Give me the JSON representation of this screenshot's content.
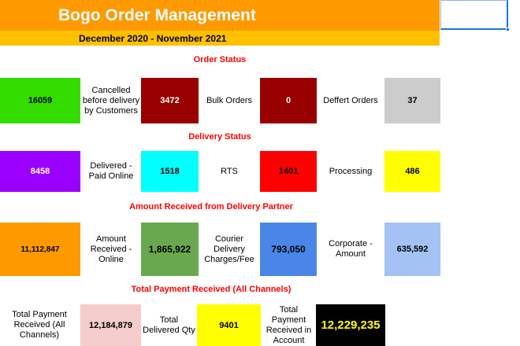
{
  "header": {
    "title": "Bogo Order Management",
    "subtitle": "December 2020 - November 2021"
  },
  "sections": {
    "order_status": "Order Status",
    "delivery_status": "Delivery Status",
    "amount_received": "Amount Received from Delivery Partner",
    "total_payment": "Total Payment Received (All Channels)"
  },
  "order_status": {
    "total_value": "16059",
    "cancelled_label": "Cancelled before delivery by Customers",
    "cancelled_value": "3472",
    "bulk_label": "Bulk Orders",
    "bulk_value": "0",
    "deffert_label": "Deffert Orders",
    "deffert_value": "37"
  },
  "delivery_status": {
    "total_value": "8458",
    "paid_online_label": "Delivered - Paid Online",
    "paid_online_value": "1518",
    "rts_label": "RTS",
    "rts_value": "1401",
    "processing_label": "Processing",
    "processing_value": "486"
  },
  "amount_received": {
    "total_value": "11,112,847",
    "online_label": "Amount Received - Online",
    "online_value": "1,865,922",
    "courier_label": "Courier Delivery Charges/Fee",
    "courier_value": "793,050",
    "corporate_label": "Corporate - Amount",
    "corporate_value": "635,592"
  },
  "total_payment": {
    "all_label": "Total Payment Received (All Channels)",
    "all_value": "12,184,879",
    "qty_label": "Total Delivered Qty",
    "qty_value": "9401",
    "account_label": "Total Payment Received in Account",
    "account_value": "12,229,235"
  },
  "colors": {
    "title_bg": "#ff9900",
    "subtitle_bg": "#ffc000",
    "section_text": "#ff0000",
    "green": "#33dd00",
    "dark_red": "#990000",
    "grey": "#cccccc",
    "purple": "#9900ff",
    "cyan": "#00ffff",
    "red": "#ff0000",
    "yellow": "#ffff00",
    "orange": "#ff9900",
    "olive_green": "#6aa84f",
    "blue": "#4a86e8",
    "light_blue": "#a4c2f4",
    "pink": "#f4cccc",
    "black": "#000000"
  }
}
